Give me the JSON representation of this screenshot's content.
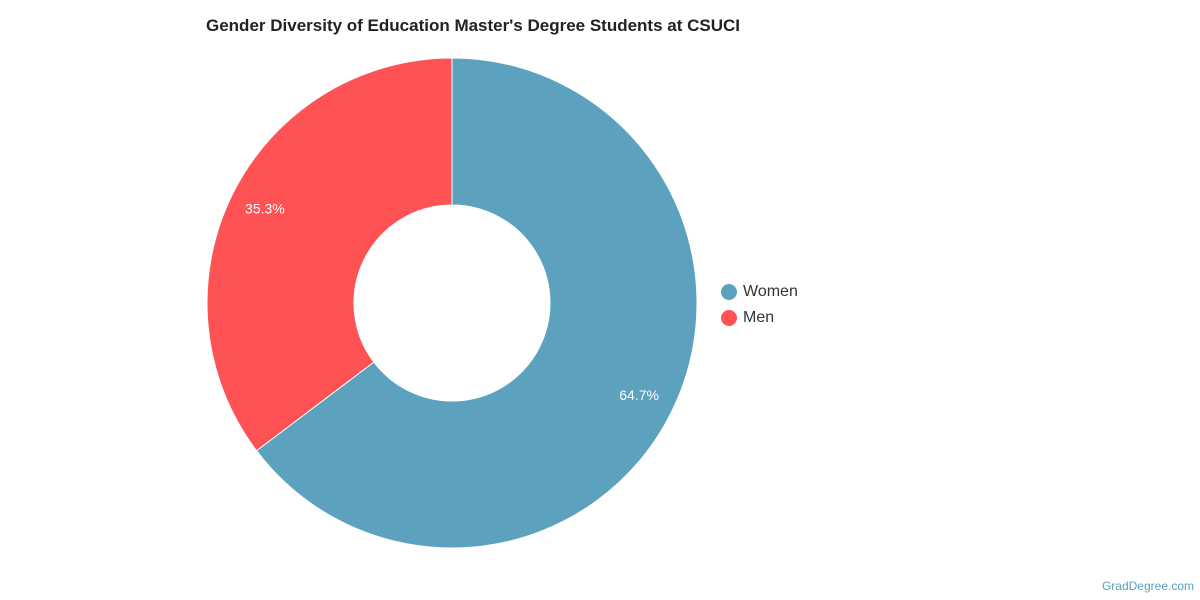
{
  "chart_data": {
    "type": "pie",
    "title": "Gender Diversity of Education Master's Degree Students at CSUCI",
    "donut": true,
    "legend_position": "right",
    "slices": [
      {
        "name": "Women",
        "value": 64.7,
        "label": "64.7%",
        "color": "#5ca1bd"
      },
      {
        "name": "Men",
        "value": 35.3,
        "label": "35.3%",
        "color": "#fe5254"
      }
    ]
  },
  "watermark": "GradDegree.com"
}
